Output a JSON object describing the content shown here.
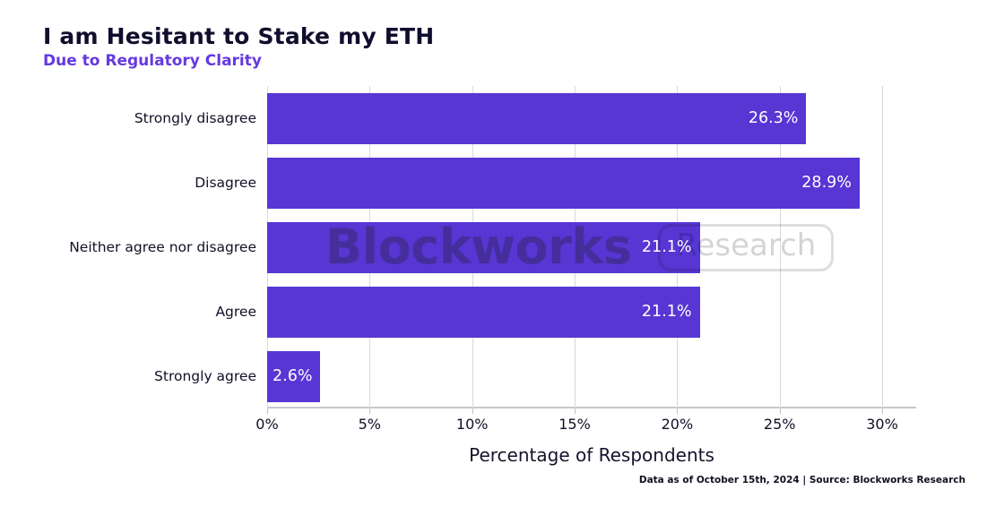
{
  "header": {
    "title": "I am Hesitant to Stake my ETH",
    "subtitle": "Due to Regulatory Clarity"
  },
  "watermark": {
    "brand": "Blockworks",
    "suffix": "Research"
  },
  "footer": {
    "note": "Data as of October 15th, 2024 | Source: Blockworks Research"
  },
  "colors": {
    "bar": "#5736d4",
    "bar_value_label": "#ffffff",
    "title": "#100e2c",
    "subtitle": "#6538e2",
    "gridline": "#d9d9dc",
    "axis_line": "#c6c6cc"
  },
  "chart_data": {
    "type": "bar",
    "orientation": "horizontal",
    "title": "I am Hesitant to Stake my ETH",
    "subtitle": "Due to Regulatory Clarity",
    "categories": [
      "Strongly disagree",
      "Disagree",
      "Neither agree nor disagree",
      "Agree",
      "Strongly agree"
    ],
    "values": [
      26.3,
      28.9,
      21.1,
      21.1,
      2.6
    ],
    "value_labels": [
      "26.3%",
      "28.9%",
      "21.1%",
      "21.1%",
      "2.6%"
    ],
    "xlabel": "Percentage of Respondents",
    "ylabel": "",
    "xlim": [
      0,
      31.66
    ],
    "xticks": [
      0,
      5,
      10,
      15,
      20,
      25,
      30
    ],
    "xtick_labels": [
      "0%",
      "5%",
      "10%",
      "15%",
      "20%",
      "25%",
      "30%"
    ],
    "grid": "vertical",
    "legend": "none",
    "bar_color": "#5736d4",
    "value_label_position": "inside-right"
  }
}
